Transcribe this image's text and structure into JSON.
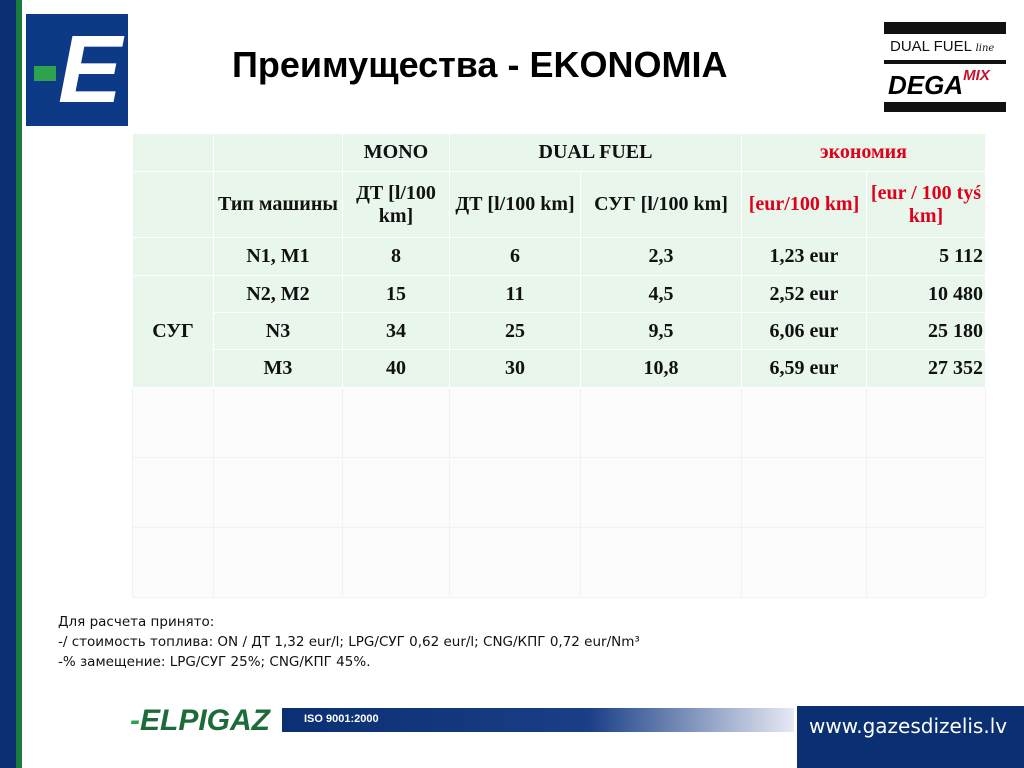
{
  "slide": {
    "title": "Преимущества - EKONOMIA",
    "logo_letter": "E",
    "dega_logo": {
      "line1": "DUAL FUEL",
      "line1_suffix": "line",
      "brand": "DEGA",
      "brand_suffix": "MIX"
    }
  },
  "table": {
    "group_headers": {
      "mono": "MONO",
      "dual": "DUAL FUEL",
      "savings": "экономия"
    },
    "col_headers": {
      "type": "Тип машины",
      "mono_dt": "ДТ [l/100 km]",
      "dual_dt": "ДТ [l/100 km]",
      "dual_lpg": "СУГ [l/100 km]",
      "eur100": "[eur/100 km]",
      "eur100k": "[eur / 100 tyś km]"
    },
    "row_group_label": "СУГ",
    "rows": [
      {
        "type": "N1, M1",
        "mono_dt": "8",
        "dual_dt": "6",
        "dual_lpg": "2,3",
        "eur100": "1,23 eur",
        "eur100k": "5 112"
      },
      {
        "type": "N2, M2",
        "mono_dt": "15",
        "dual_dt": "11",
        "dual_lpg": "4,5",
        "eur100": "2,52 eur",
        "eur100k": "10 480"
      },
      {
        "type": "N3",
        "mono_dt": "34",
        "dual_dt": "25",
        "dual_lpg": "9,5",
        "eur100": "6,06 eur",
        "eur100k": "25 180"
      },
      {
        "type": "M3",
        "mono_dt": "40",
        "dual_dt": "30",
        "dual_lpg": "10,8",
        "eur100": "6,59 eur",
        "eur100k": "27 352"
      }
    ]
  },
  "notes": {
    "line1": "Для расчета принято:",
    "line2": "-/ стоимость топлива: ON / ДТ 1,32 eur/l; LPG/СУГ 0,62 eur/l; CNG/КПГ 0,72 eur/Nm³",
    "line3": "-% замещение: LPG/СУГ 25%; CNG/КПГ 45%."
  },
  "footer": {
    "brand": "ELPIGAZ",
    "iso": "ISO 9001:2000",
    "website": "www.gazesdizelis.lv"
  },
  "colors": {
    "navy": "#0b2f73",
    "green": "#2ea44f",
    "red": "#e0001b",
    "table_bg": "#e8f6ec"
  }
}
